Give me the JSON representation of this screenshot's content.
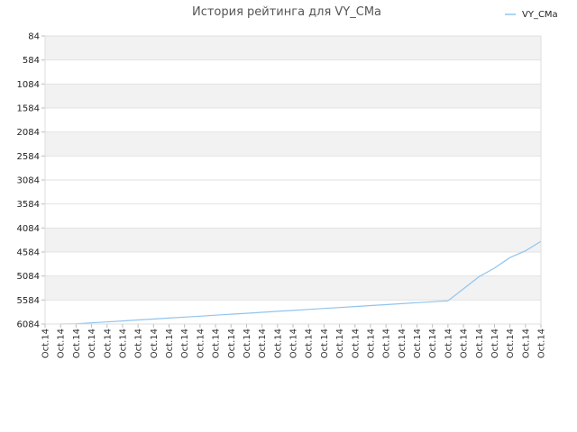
{
  "chart_data": {
    "type": "line",
    "title": "История рейтинга для VY_CMa",
    "xlabel": "",
    "ylabel": "",
    "legend_position": "top-right",
    "grid": true,
    "y_inverted": true,
    "ylim": [
      84,
      6084
    ],
    "yticks": [
      84,
      584,
      1084,
      1584,
      2084,
      2584,
      3084,
      3584,
      4084,
      4584,
      5084,
      5584,
      6084
    ],
    "x_tick_labels": [
      "Oct.14",
      "Oct.14",
      "Oct.14",
      "Oct.14",
      "Oct.14",
      "Oct.14",
      "Oct.14",
      "Oct.14",
      "Oct.14",
      "Oct.14",
      "Oct.14",
      "Oct.14",
      "Oct.14",
      "Oct.14",
      "Oct.14",
      "Oct.14",
      "Oct.14",
      "Oct.14",
      "Oct.14",
      "Oct.14",
      "Oct.14",
      "Oct.14",
      "Oct.14",
      "Oct.14",
      "Oct.14",
      "Oct.14",
      "Oct.14",
      "Oct.14",
      "Oct.14",
      "Oct.14",
      "Oct.14",
      "Oct.14",
      "Oct.14"
    ],
    "series": [
      {
        "name": "VY_CMa",
        "color": "#90c4ee",
        "values": [
          6084,
          6078,
          6060,
          6040,
          6020,
          6000,
          5980,
          5960,
          5940,
          5920,
          5900,
          5880,
          5860,
          5840,
          5820,
          5800,
          5780,
          5760,
          5740,
          5720,
          5700,
          5680,
          5660,
          5640,
          5620,
          5600,
          5350,
          5100,
          4920,
          4700,
          4560,
          4360
        ]
      }
    ]
  }
}
